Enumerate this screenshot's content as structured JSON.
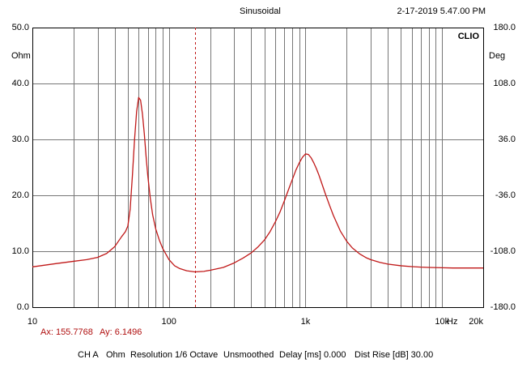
{
  "header": {
    "mode": "Sinusoidal",
    "timestamp": "2-17-2019 5.47.00 PM",
    "brand": "CLIO"
  },
  "axes": {
    "left_unit": "Ohm",
    "right_unit": "Deg",
    "x_unit": "Hz"
  },
  "cursor": {
    "ax_label": "Ax: 155.7768",
    "ay_label": "Ay: 6.1496"
  },
  "footer": {
    "channel": "CH A",
    "unit": "Ohm",
    "resolution": "Resolution 1/6 Octave",
    "smoothing": "Unsmoothed",
    "delay": "Delay [ms] 0.000",
    "dist_rise": "Dist Rise [dB] 30.00"
  },
  "colors": {
    "background": "#ffffff",
    "grid": "#777777",
    "curve": "#c01818",
    "cursor": "#c01818",
    "cursor_text": "#b01010"
  },
  "chart_data": {
    "type": "line",
    "title": "Sinusoidal",
    "xscale": "log",
    "xlim": [
      10,
      20000
    ],
    "ylim": [
      0,
      50
    ],
    "y2lim": [
      -180,
      180
    ],
    "xticks": [
      {
        "value": 10,
        "label": "10"
      },
      {
        "value": 100,
        "label": "100"
      },
      {
        "value": 1000,
        "label": "1k"
      },
      {
        "value": 10000,
        "label": "10k"
      },
      {
        "value": 20000,
        "label": "20k"
      }
    ],
    "yticks": [
      {
        "value": 0,
        "label": "0.0"
      },
      {
        "value": 10,
        "label": "10.0"
      },
      {
        "value": 20,
        "label": "20.0"
      },
      {
        "value": 30,
        "label": "30.0"
      },
      {
        "value": 40,
        "label": "40.0"
      },
      {
        "value": 50,
        "label": "50.0"
      }
    ],
    "y2ticks": [
      {
        "value": 180,
        "label": "180.0"
      },
      {
        "value": 108,
        "label": "108.0"
      },
      {
        "value": 36,
        "label": "36.0"
      },
      {
        "value": -36,
        "label": "-36.0"
      },
      {
        "value": -108,
        "label": "-108.0"
      },
      {
        "value": -180,
        "label": "-180.0"
      }
    ],
    "grid": true,
    "cursor_x": 155.7768,
    "series": [
      {
        "x": [
          10,
          15,
          20,
          25,
          30,
          35,
          40,
          45,
          48,
          50,
          52,
          54,
          56,
          58,
          60,
          62,
          64,
          66,
          68,
          70,
          73,
          76,
          80,
          85,
          90,
          100,
          110,
          120,
          135,
          155,
          180,
          200,
          250,
          300,
          350,
          400,
          450,
          500,
          550,
          600,
          650,
          700,
          750,
          800,
          850,
          900,
          950,
          1000,
          1050,
          1100,
          1150,
          1200,
          1250,
          1300,
          1400,
          1500,
          1600,
          1800,
          2000,
          2200,
          2500,
          2800,
          3000,
          3500,
          4000,
          5000,
          6000,
          7000,
          8000,
          10000,
          12000,
          15000,
          20000
        ],
        "values": [
          7.2,
          7.8,
          8.2,
          8.5,
          8.9,
          9.6,
          10.8,
          12.6,
          13.5,
          14.5,
          17.5,
          23.5,
          30.0,
          35.0,
          37.5,
          37.0,
          34.5,
          31.0,
          27.0,
          23.5,
          19.5,
          16.5,
          14.0,
          12.0,
          10.5,
          8.5,
          7.4,
          6.9,
          6.5,
          6.3,
          6.4,
          6.6,
          7.1,
          7.9,
          8.8,
          9.7,
          10.8,
          12.0,
          13.5,
          15.2,
          17.0,
          19.0,
          21.0,
          22.8,
          24.5,
          25.8,
          26.8,
          27.4,
          27.3,
          26.7,
          25.8,
          24.8,
          23.7,
          22.5,
          20.2,
          18.2,
          16.4,
          13.6,
          11.8,
          10.6,
          9.5,
          8.8,
          8.5,
          8.0,
          7.7,
          7.4,
          7.25,
          7.15,
          7.1,
          7.05,
          7.0,
          7.0,
          7.0
        ]
      }
    ]
  }
}
